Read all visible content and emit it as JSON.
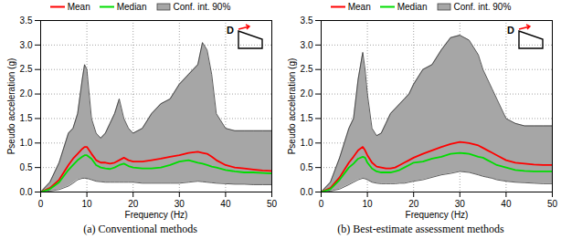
{
  "chart_data": [
    {
      "type": "line",
      "title": "(a) Conventional methods",
      "x_label": "Frequency (Hz)",
      "y_label": "Pseudo acceleration (g)",
      "annotations": [
        "D"
      ],
      "x": [
        0,
        2,
        4,
        6,
        7,
        8,
        9,
        9.5,
        10,
        11,
        12,
        13,
        14,
        15,
        16,
        17,
        18,
        19,
        20,
        22,
        24,
        26,
        28,
        30,
        32,
        34,
        35,
        36,
        37,
        38,
        40,
        42,
        44,
        46,
        48,
        50
      ],
      "series": [
        {
          "name": "Mean",
          "color": "#ff0000",
          "type": "line",
          "values": [
            0,
            0.08,
            0.25,
            0.55,
            0.68,
            0.78,
            0.88,
            0.92,
            0.92,
            0.78,
            0.65,
            0.6,
            0.6,
            0.58,
            0.6,
            0.65,
            0.7,
            0.65,
            0.62,
            0.62,
            0.65,
            0.68,
            0.72,
            0.75,
            0.8,
            0.82,
            0.8,
            0.78,
            0.72,
            0.65,
            0.55,
            0.5,
            0.48,
            0.46,
            0.44,
            0.43
          ]
        },
        {
          "name": "Median",
          "color": "#00dd00",
          "type": "line",
          "values": [
            0,
            0.06,
            0.2,
            0.45,
            0.55,
            0.65,
            0.72,
            0.75,
            0.75,
            0.68,
            0.55,
            0.5,
            0.48,
            0.47,
            0.5,
            0.55,
            0.58,
            0.53,
            0.5,
            0.48,
            0.48,
            0.5,
            0.55,
            0.62,
            0.65,
            0.6,
            0.58,
            0.55,
            0.52,
            0.5,
            0.45,
            0.42,
            0.4,
            0.4,
            0.39,
            0.38
          ]
        },
        {
          "name": "Conf. int. 90%",
          "color": "#a6a6a6",
          "type": "area",
          "lower": [
            0,
            0.02,
            0.05,
            0.12,
            0.18,
            0.25,
            0.28,
            0.28,
            0.28,
            0.25,
            0.22,
            0.21,
            0.2,
            0.2,
            0.2,
            0.2,
            0.2,
            0.2,
            0.2,
            0.18,
            0.18,
            0.18,
            0.18,
            0.18,
            0.2,
            0.22,
            0.21,
            0.2,
            0.19,
            0.18,
            0.17,
            0.16,
            0.16,
            0.15,
            0.15,
            0.15
          ],
          "upper": [
            0,
            0.2,
            0.6,
            1.2,
            1.3,
            1.6,
            2.3,
            2.6,
            2.5,
            1.5,
            1.2,
            1.1,
            1.2,
            1.4,
            1.6,
            1.9,
            1.5,
            1.3,
            1.2,
            1.3,
            1.6,
            1.8,
            1.9,
            2.2,
            2.4,
            2.6,
            3.05,
            2.9,
            2.4,
            1.6,
            1.3,
            1.25,
            1.25,
            1.25,
            1.25,
            1.25
          ]
        }
      ],
      "xlim": [
        0,
        50
      ],
      "xticks": [
        0,
        10,
        20,
        30,
        40,
        50
      ],
      "ylim": [
        0,
        3.5
      ],
      "yticks": [
        0,
        0.5,
        1,
        1.5,
        2,
        2.5,
        3,
        3.5
      ],
      "grid": true,
      "legend": "top"
    },
    {
      "type": "line",
      "title": "(b) Best-estimate assessment methods",
      "x_label": "Frequency (Hz)",
      "y_label": "Pseudo acceleration (g)",
      "annotations": [
        "D"
      ],
      "x": [
        0,
        2,
        4,
        6,
        7,
        8,
        9,
        9.5,
        10,
        11,
        12,
        13,
        14,
        15,
        16,
        17,
        18,
        19,
        20,
        22,
        24,
        26,
        28,
        30,
        32,
        34,
        35,
        36,
        37,
        38,
        40,
        42,
        44,
        46,
        48,
        50
      ],
      "series": [
        {
          "name": "Mean",
          "color": "#ff0000",
          "type": "line",
          "values": [
            0,
            0.08,
            0.3,
            0.6,
            0.72,
            0.85,
            0.92,
            0.85,
            0.75,
            0.6,
            0.52,
            0.5,
            0.48,
            0.48,
            0.5,
            0.55,
            0.6,
            0.65,
            0.7,
            0.78,
            0.85,
            0.92,
            0.98,
            1.02,
            1.0,
            0.95,
            0.9,
            0.85,
            0.8,
            0.75,
            0.65,
            0.6,
            0.58,
            0.56,
            0.55,
            0.55
          ]
        },
        {
          "name": "Median",
          "color": "#00dd00",
          "type": "line",
          "values": [
            0,
            0.06,
            0.25,
            0.5,
            0.58,
            0.68,
            0.72,
            0.7,
            0.6,
            0.48,
            0.42,
            0.4,
            0.4,
            0.4,
            0.42,
            0.45,
            0.5,
            0.55,
            0.6,
            0.62,
            0.68,
            0.72,
            0.78,
            0.8,
            0.78,
            0.72,
            0.7,
            0.65,
            0.6,
            0.55,
            0.5,
            0.45,
            0.43,
            0.42,
            0.42,
            0.42
          ]
        },
        {
          "name": "Conf. int. 90%",
          "color": "#a6a6a6",
          "type": "area",
          "lower": [
            0,
            0.02,
            0.06,
            0.15,
            0.2,
            0.25,
            0.28,
            0.27,
            0.25,
            0.2,
            0.18,
            0.17,
            0.17,
            0.17,
            0.17,
            0.18,
            0.18,
            0.2,
            0.22,
            0.25,
            0.3,
            0.35,
            0.38,
            0.42,
            0.4,
            0.35,
            0.32,
            0.3,
            0.28,
            0.25,
            0.22,
            0.2,
            0.19,
            0.18,
            0.17,
            0.17
          ],
          "upper": [
            0,
            0.2,
            0.7,
            1.3,
            1.5,
            2.3,
            2.85,
            2.5,
            2.0,
            1.3,
            1.15,
            1.2,
            1.4,
            1.6,
            1.7,
            1.8,
            1.9,
            2.0,
            2.2,
            2.5,
            2.6,
            2.9,
            3.15,
            3.2,
            3.1,
            2.8,
            2.5,
            2.3,
            2.1,
            1.9,
            1.5,
            1.4,
            1.35,
            1.35,
            1.35,
            1.35
          ]
        }
      ],
      "xlim": [
        0,
        50
      ],
      "xticks": [
        0,
        10,
        20,
        30,
        40,
        50
      ],
      "ylim": [
        0,
        3.5
      ],
      "yticks": [
        0,
        0.5,
        1,
        1.5,
        2,
        2.5,
        3,
        3.5
      ],
      "grid": true,
      "legend": "top"
    }
  ]
}
